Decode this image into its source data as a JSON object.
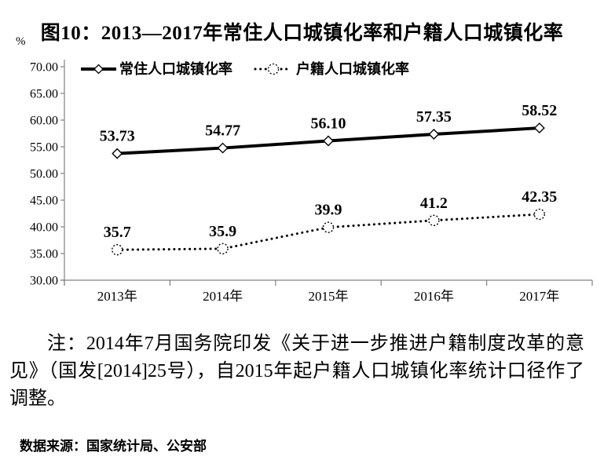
{
  "title": "图10：2013—2017年常住人口城镇化率和户籍人口城镇化率",
  "chart_data": {
    "type": "line",
    "title": "图10：2013—2017年常住人口城镇化率和户籍人口城镇化率",
    "categories": [
      "2013年",
      "2014年",
      "2015年",
      "2016年",
      "2017年"
    ],
    "series": [
      {
        "name": "常住人口城镇化率",
        "values": [
          53.73,
          54.77,
          56.1,
          57.35,
          58.52
        ],
        "labels": [
          "53.73",
          "54.77",
          "56.10",
          "57.35",
          "58.52"
        ],
        "line_style": "solid",
        "marker": "diamond"
      },
      {
        "name": "户籍人口城镇化率",
        "values": [
          35.7,
          35.9,
          39.9,
          41.2,
          42.35
        ],
        "labels": [
          "35.7",
          "35.9",
          "39.9",
          "41.2",
          "42.35"
        ],
        "line_style": "dotted",
        "marker": "circle"
      }
    ],
    "xlabel": "",
    "ylabel": "%",
    "ylim": [
      30,
      70
    ],
    "ytick_step": 5,
    "ytick_labels": [
      "30.00",
      "35.00",
      "40.00",
      "45.00",
      "50.00",
      "55.00",
      "60.00",
      "65.00",
      "70.00"
    ],
    "grid": false,
    "legend_position": "top",
    "colors": {
      "series_color": "#000000",
      "axis_color": "#808080",
      "background": "#ffffff"
    }
  },
  "note": "注：2014年7月国务院印发《关于进一步推进户籍制度改革的意见》（国发[2014]25号），自2015年起户籍人口城镇化率统计口径作了调整。",
  "source": "数据来源：国家统计局、公安部"
}
